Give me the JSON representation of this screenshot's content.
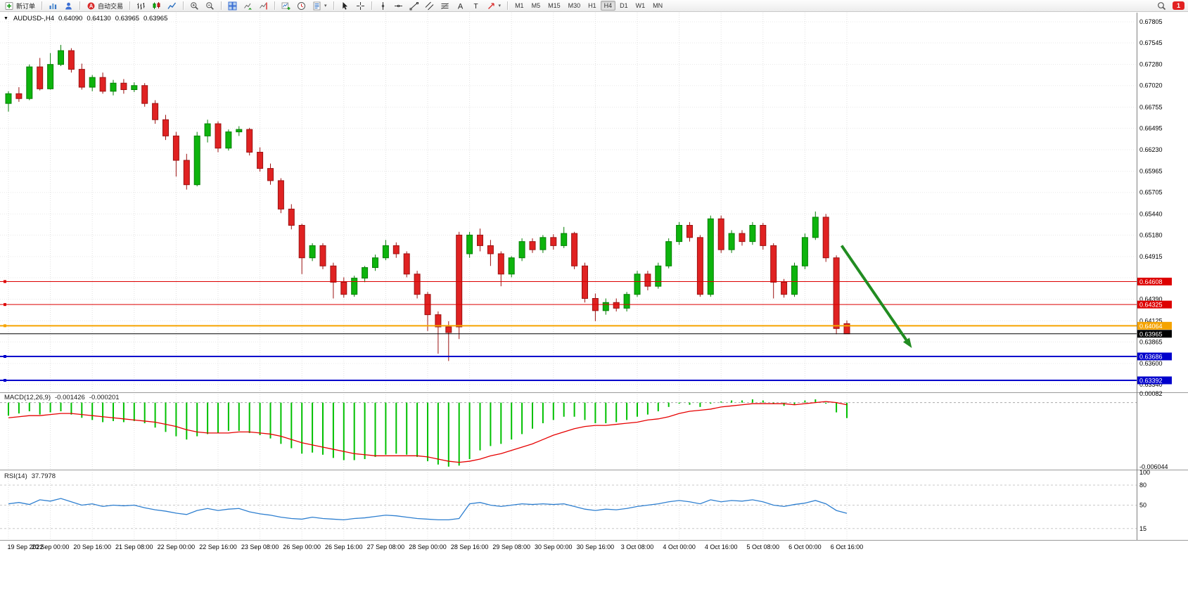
{
  "toolbar": {
    "new_order_label": "新订单",
    "auto_trading_label": "自动交易",
    "icon_groups": [
      [
        "new-order"
      ],
      [
        "charts",
        "profiles"
      ],
      [
        "auto-trading"
      ],
      [
        "bar-chart",
        "candlestick-chart",
        "line-chart"
      ],
      [
        "zoom-in",
        "zoom-out"
      ],
      [
        "tile-windows",
        "auto-scroll",
        "chart-shift"
      ],
      [
        "new-chart",
        "period",
        "template"
      ],
      [
        "cursor",
        "crosshair"
      ],
      [
        "vertical-line",
        "horizontal-line",
        "trendline",
        "channel",
        "fibonacci",
        "text",
        "label",
        "arrows"
      ]
    ],
    "timeframes": [
      "M1",
      "M5",
      "M15",
      "M30",
      "H1",
      "H4",
      "D1",
      "W1",
      "MN"
    ],
    "active_timeframe": "H4",
    "notification_count": "1"
  },
  "chart_header": {
    "dropdown_marker": "▼",
    "symbol_period": "AUDUSD-,H4",
    "open": "0.64090",
    "high": "0.64130",
    "low": "0.63965",
    "close": "0.63965"
  },
  "chart_data": [
    {
      "type": "candlestick",
      "name": "AUDUSD- H4",
      "price_range": {
        "top": 0.67805,
        "bottom": 0.6334
      },
      "y_ticks": [
        "0.67805",
        "0.67545",
        "0.67280",
        "0.67020",
        "0.66755",
        "0.66495",
        "0.66230",
        "0.65965",
        "0.65705",
        "0.65440",
        "0.65180",
        "0.64915",
        "0.64655",
        "0.64390",
        "0.64125",
        "0.63865",
        "0.63600",
        "0.63340"
      ],
      "x_labels": [
        "19 Sep 2022",
        "20 Sep 00:00",
        "20 Sep 16:00",
        "21 Sep 08:00",
        "22 Sep 00:00",
        "22 Sep 16:00",
        "23 Sep 08:00",
        "26 Sep 00:00",
        "26 Sep 16:00",
        "27 Sep 08:00",
        "28 Sep 00:00",
        "28 Sep 16:00",
        "29 Sep 08:00",
        "30 Sep 00:00",
        "30 Sep 16:00",
        "3 Oct 08:00",
        "4 Oct 00:00",
        "4 Oct 16:00",
        "5 Oct 08:00",
        "6 Oct 00:00",
        "6 Oct 16:00"
      ],
      "bars_per_label": 4,
      "up_color": "#0db40d",
      "up_border": "#067f06",
      "down_color": "#e02222",
      "down_border": "#9b1212",
      "candles": [
        [
          0.668,
          0.6695,
          0.667,
          0.6692
        ],
        [
          0.6692,
          0.67,
          0.6682,
          0.6686
        ],
        [
          0.6686,
          0.6728,
          0.6684,
          0.6725
        ],
        [
          0.6725,
          0.6736,
          0.6696,
          0.6698
        ],
        [
          0.6698,
          0.6742,
          0.6697,
          0.6728
        ],
        [
          0.6728,
          0.6752,
          0.6726,
          0.6745
        ],
        [
          0.6745,
          0.6748,
          0.6718,
          0.6722
        ],
        [
          0.6722,
          0.6729,
          0.6697,
          0.67
        ],
        [
          0.67,
          0.6715,
          0.6695,
          0.6712
        ],
        [
          0.6712,
          0.6718,
          0.6692,
          0.6695
        ],
        [
          0.6695,
          0.6709,
          0.669,
          0.6705
        ],
        [
          0.6705,
          0.671,
          0.6692,
          0.6697
        ],
        [
          0.6697,
          0.6706,
          0.6694,
          0.6702
        ],
        [
          0.6702,
          0.6705,
          0.6676,
          0.668
        ],
        [
          0.668,
          0.6684,
          0.6655,
          0.666
        ],
        [
          0.666,
          0.6666,
          0.6635,
          0.664
        ],
        [
          0.664,
          0.6645,
          0.659,
          0.661
        ],
        [
          0.661,
          0.6618,
          0.6574,
          0.658
        ],
        [
          0.658,
          0.6645,
          0.6578,
          0.664
        ],
        [
          0.664,
          0.666,
          0.6632,
          0.6655
        ],
        [
          0.6655,
          0.6658,
          0.662,
          0.6625
        ],
        [
          0.6625,
          0.6648,
          0.6622,
          0.6645
        ],
        [
          0.6645,
          0.6652,
          0.664,
          0.6648
        ],
        [
          0.6648,
          0.665,
          0.6616,
          0.662
        ],
        [
          0.662,
          0.6626,
          0.6596,
          0.66
        ],
        [
          0.66,
          0.6606,
          0.658,
          0.6585
        ],
        [
          0.6585,
          0.6588,
          0.6545,
          0.655
        ],
        [
          0.655,
          0.6556,
          0.6525,
          0.653
        ],
        [
          0.653,
          0.6532,
          0.647,
          0.649
        ],
        [
          0.649,
          0.6508,
          0.6486,
          0.6505
        ],
        [
          0.6505,
          0.6508,
          0.6476,
          0.648
        ],
        [
          0.648,
          0.6484,
          0.644,
          0.646
        ],
        [
          0.646,
          0.6466,
          0.6441,
          0.6445
        ],
        [
          0.6445,
          0.6468,
          0.6442,
          0.6465
        ],
        [
          0.6465,
          0.648,
          0.646,
          0.6478
        ],
        [
          0.6478,
          0.6494,
          0.6474,
          0.649
        ],
        [
          0.649,
          0.6512,
          0.6487,
          0.6505
        ],
        [
          0.6505,
          0.6509,
          0.649,
          0.6495
        ],
        [
          0.6495,
          0.6498,
          0.6466,
          0.647
        ],
        [
          0.647,
          0.6474,
          0.644,
          0.6445
        ],
        [
          0.6445,
          0.6448,
          0.64,
          0.642
        ],
        [
          0.642,
          0.6424,
          0.6372,
          0.6405
        ],
        [
          0.6405,
          0.6412,
          0.6363,
          0.6398
        ],
        [
          0.6518,
          0.6522,
          0.639,
          0.6405
        ],
        [
          0.6495,
          0.6522,
          0.649,
          0.6518
        ],
        [
          0.6518,
          0.6526,
          0.6498,
          0.6505
        ],
        [
          0.6505,
          0.6512,
          0.648,
          0.6495
        ],
        [
          0.6495,
          0.6498,
          0.6455,
          0.647
        ],
        [
          0.647,
          0.6492,
          0.6466,
          0.649
        ],
        [
          0.649,
          0.6514,
          0.6486,
          0.651
        ],
        [
          0.651,
          0.6514,
          0.6496,
          0.65
        ],
        [
          0.65,
          0.6518,
          0.6496,
          0.6515
        ],
        [
          0.6515,
          0.6519,
          0.65,
          0.6505
        ],
        [
          0.6505,
          0.6528,
          0.6502,
          0.652
        ],
        [
          0.652,
          0.6522,
          0.6476,
          0.648
        ],
        [
          0.648,
          0.6484,
          0.6435,
          0.644
        ],
        [
          0.644,
          0.6446,
          0.6412,
          0.6425
        ],
        [
          0.6425,
          0.644,
          0.642,
          0.6435
        ],
        [
          0.6435,
          0.644,
          0.6424,
          0.6428
        ],
        [
          0.6428,
          0.6448,
          0.6424,
          0.6445
        ],
        [
          0.6445,
          0.6474,
          0.6442,
          0.647
        ],
        [
          0.647,
          0.6474,
          0.645,
          0.6455
        ],
        [
          0.6455,
          0.6484,
          0.6452,
          0.648
        ],
        [
          0.648,
          0.6514,
          0.6477,
          0.651
        ],
        [
          0.651,
          0.6534,
          0.6506,
          0.653
        ],
        [
          0.653,
          0.6534,
          0.651,
          0.6515
        ],
        [
          0.6515,
          0.6518,
          0.6442,
          0.6445
        ],
        [
          0.6445,
          0.6542,
          0.6442,
          0.6538
        ],
        [
          0.6538,
          0.6542,
          0.6496,
          0.65
        ],
        [
          0.65,
          0.6524,
          0.6496,
          0.652
        ],
        [
          0.652,
          0.6524,
          0.6505,
          0.651
        ],
        [
          0.651,
          0.6534,
          0.6506,
          0.653
        ],
        [
          0.653,
          0.6533,
          0.65,
          0.6505
        ],
        [
          0.6505,
          0.6508,
          0.644,
          0.646
        ],
        [
          0.646,
          0.6464,
          0.6441,
          0.6445
        ],
        [
          0.6445,
          0.6484,
          0.6442,
          0.648
        ],
        [
          0.648,
          0.652,
          0.6476,
          0.6515
        ],
        [
          0.6515,
          0.6547,
          0.6512,
          0.654
        ],
        [
          0.654,
          0.6544,
          0.6485,
          0.649
        ],
        [
          0.649,
          0.6493,
          0.6396,
          0.6403
        ],
        [
          0.6409,
          0.6413,
          0.63965,
          0.63965
        ]
      ],
      "lines": [
        {
          "price": 0.64608,
          "label": "0.64608",
          "color": "#dd0000",
          "width": 1,
          "handle": true
        },
        {
          "price": 0.64325,
          "label": "0.64325",
          "color": "#dd0000",
          "width": 1,
          "handle": true
        },
        {
          "price": 0.64064,
          "label": "0.64064",
          "color": "#f5a300",
          "width": 2,
          "handle": true
        },
        {
          "price": 0.63965,
          "label": "0.63965",
          "color": "#000000",
          "width": 1,
          "handle": false
        },
        {
          "price": 0.63686,
          "label": "0.63686",
          "color": "#0000cc",
          "width": 2,
          "handle": true
        },
        {
          "price": 0.63392,
          "label": "0.63392",
          "color": "#0000cc",
          "width": 2,
          "handle": true
        }
      ],
      "arrow": {
        "from_bar": 79.5,
        "from_price": 0.6505,
        "to_bar": 86.2,
        "to_price": 0.6379,
        "color": "#218c21"
      }
    },
    {
      "type": "bar",
      "name": "MACD(12,26,9)",
      "value_label": "-0.001426",
      "signal_label": "-0.000201",
      "y_max": 0.00082,
      "y_min": -0.006044,
      "y_tick_labels": [
        "0.00082",
        "-0.006044"
      ],
      "histogram_color": "#00c000",
      "signal_color": "#e60000",
      "histogram": [
        -0.0012,
        -0.001,
        -0.0008,
        -0.0011,
        -0.0009,
        -0.0008,
        -0.0011,
        -0.0014,
        -0.0016,
        -0.0018,
        -0.0017,
        -0.0018,
        -0.0017,
        -0.0019,
        -0.0023,
        -0.0027,
        -0.0031,
        -0.0034,
        -0.0031,
        -0.0029,
        -0.0028,
        -0.0026,
        -0.0026,
        -0.0028,
        -0.003,
        -0.0033,
        -0.0038,
        -0.0042,
        -0.0047,
        -0.0046,
        -0.0048,
        -0.0051,
        -0.0053,
        -0.0053,
        -0.0052,
        -0.005,
        -0.0048,
        -0.0047,
        -0.0048,
        -0.005,
        -0.0054,
        -0.0057,
        -0.0059,
        -0.0058,
        -0.0052,
        -0.0044,
        -0.004,
        -0.0038,
        -0.0034,
        -0.0029,
        -0.0024,
        -0.0019,
        -0.0016,
        -0.0013,
        -0.0013,
        -0.0016,
        -0.0019,
        -0.0019,
        -0.0018,
        -0.0016,
        -0.0013,
        -0.0011,
        -0.0008,
        -0.0004,
        -0.0001,
        -0.0002,
        -0.0004,
        -0.0001,
        0.0001,
        0.0002,
        0.0002,
        0.0003,
        0.0002,
        -0.0001,
        -0.0003,
        -0.0002,
        0.0002,
        0.0003,
        -0.0001,
        -0.0009,
        -0.001426
      ],
      "signal": [
        -0.0014,
        -0.0013,
        -0.0012,
        -0.0012,
        -0.0011,
        -0.001,
        -0.001,
        -0.0011,
        -0.0012,
        -0.0013,
        -0.0014,
        -0.0015,
        -0.0016,
        -0.0017,
        -0.0018,
        -0.002,
        -0.0022,
        -0.0025,
        -0.0027,
        -0.0028,
        -0.0028,
        -0.0028,
        -0.0027,
        -0.0027,
        -0.0028,
        -0.0029,
        -0.0031,
        -0.0034,
        -0.0037,
        -0.0039,
        -0.0041,
        -0.0043,
        -0.0045,
        -0.0047,
        -0.0048,
        -0.0049,
        -0.0049,
        -0.0049,
        -0.0049,
        -0.0049,
        -0.005,
        -0.0052,
        -0.0054,
        -0.0055,
        -0.0054,
        -0.0052,
        -0.0049,
        -0.0047,
        -0.0044,
        -0.0041,
        -0.0038,
        -0.0034,
        -0.003,
        -0.0027,
        -0.0024,
        -0.0022,
        -0.0021,
        -0.0021,
        -0.002,
        -0.0019,
        -0.0018,
        -0.0016,
        -0.0015,
        -0.0013,
        -0.001,
        -0.0008,
        -0.0007,
        -0.0006,
        -0.0004,
        -0.0003,
        -0.0002,
        -0.0001,
        -0.0001,
        -0.0001,
        -0.0001,
        -0.0002,
        -0.0001,
        0.0,
        0.0001,
        0.0,
        -0.000201
      ]
    },
    {
      "type": "line",
      "name": "RSI(14)",
      "value_label": "37.7978",
      "y_range": [
        0,
        100
      ],
      "y_ticks": [
        100,
        80,
        50,
        15
      ],
      "levels": [
        80,
        50,
        15
      ],
      "color": "#2e7fd0",
      "values": [
        52,
        54,
        51,
        58,
        56,
        60,
        55,
        50,
        52,
        48,
        50,
        49,
        50,
        46,
        43,
        41,
        38,
        36,
        42,
        45,
        42,
        44,
        45,
        40,
        37,
        35,
        32,
        30,
        29,
        32,
        30,
        29,
        28,
        30,
        31,
        33,
        35,
        34,
        32,
        30,
        29,
        28,
        28,
        30,
        52,
        54,
        50,
        48,
        50,
        52,
        51,
        52,
        51,
        52,
        48,
        44,
        42,
        44,
        43,
        45,
        48,
        50,
        52,
        55,
        57,
        55,
        52,
        58,
        55,
        57,
        56,
        58,
        55,
        50,
        48,
        51,
        53,
        57,
        52,
        42,
        37.7978
      ]
    }
  ]
}
